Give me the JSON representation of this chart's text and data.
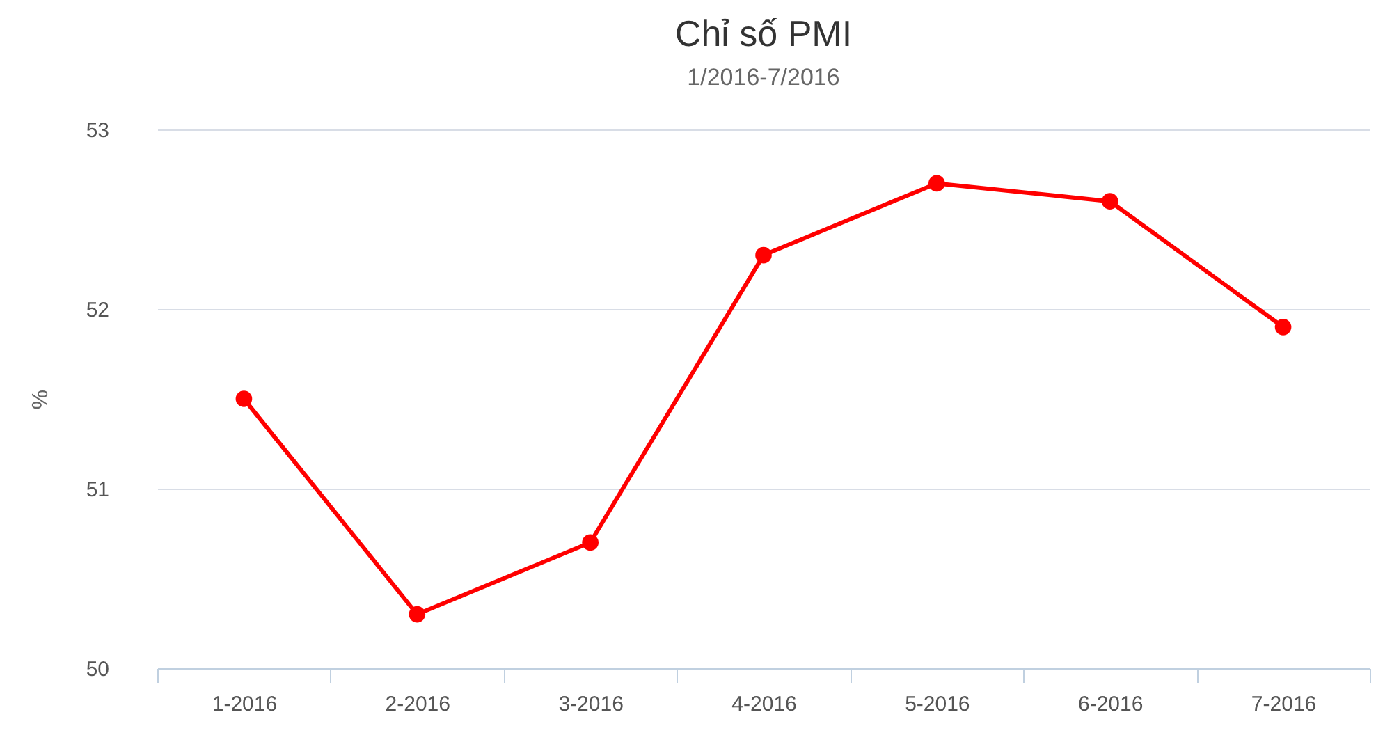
{
  "chart_data": {
    "type": "line",
    "title": "Chỉ số PMI",
    "subtitle": "1/2016-7/2016",
    "ylabel": "%",
    "categories": [
      "1-2016",
      "2-2016",
      "3-2016",
      "4-2016",
      "5-2016",
      "6-2016",
      "7-2016"
    ],
    "series": [
      {
        "color": "#ff0000",
        "values": [
          51.5,
          50.3,
          50.7,
          52.3,
          52.7,
          52.6,
          51.9
        ]
      }
    ],
    "ylim": [
      50,
      53
    ],
    "yticks": [
      50,
      51,
      52,
      53
    ],
    "grid": "y",
    "marker": "circle",
    "line_style": "solid"
  }
}
